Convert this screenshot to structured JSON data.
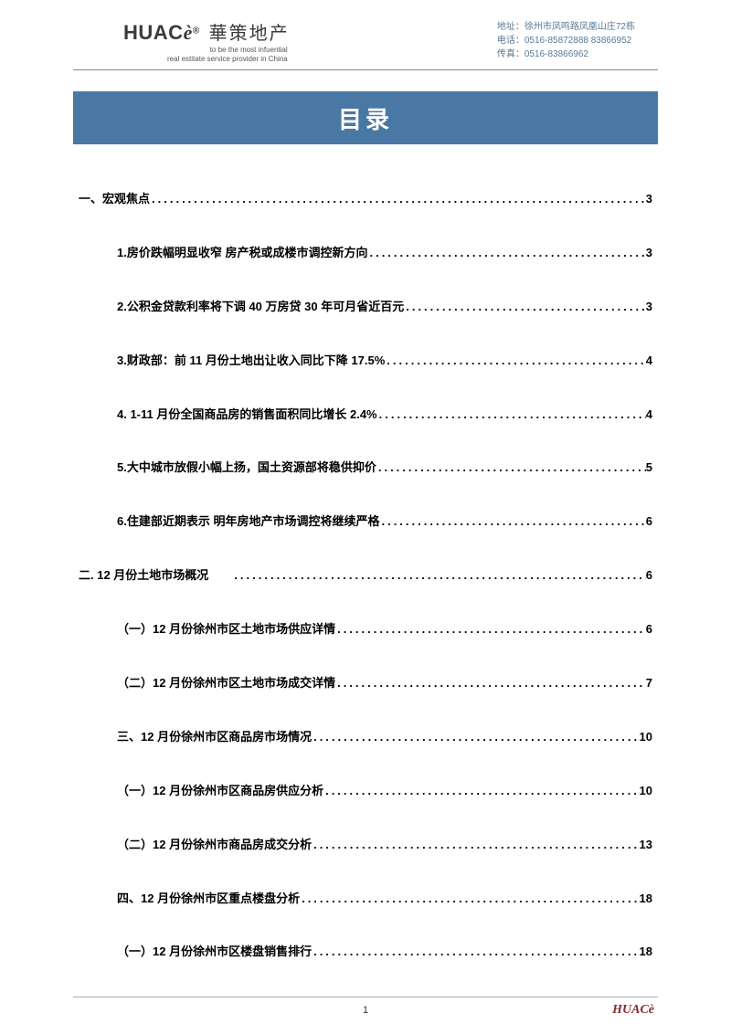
{
  "header": {
    "logo_latin": "HUAC",
    "logo_accent": "è",
    "logo_sup": "®",
    "logo_chinese": "華策地产",
    "logo_sub1": "to be the most infuential",
    "logo_sub2": "real estitate service provider in China",
    "contact_addr": "地址：徐州市凤鸣路凤凰山庄72栋",
    "contact_tel": "电话：0516-85872888  83866952",
    "contact_fax": "传真：0516-83866962"
  },
  "title": "目录",
  "toc": [
    {
      "level": 1,
      "label": "一、宏观焦点",
      "page": "3"
    },
    {
      "level": 2,
      "label": "1.房价跌幅明显收窄  房产税或成楼市调控新方向",
      "page": "3"
    },
    {
      "level": 2,
      "label": "2.公积金贷款利率将下调  40 万房贷 30 年可月省近百元 ",
      "page": "3"
    },
    {
      "level": 2,
      "label": "3.财政部：前 11 月份土地出让收入同比下降 17.5% ",
      "page": "4"
    },
    {
      "level": 2,
      "label": "4. 1-11 月份全国商品房的销售面积同比增长 2.4% ",
      "page": "4"
    },
    {
      "level": 2,
      "label": "5.大中城市放假小幅上扬，国土资源部将稳供抑价",
      "page": "5"
    },
    {
      "level": 2,
      "label": "6.住建部近期表示  明年房地产市场调控将继续严格 ",
      "page": "6"
    },
    {
      "level": 1,
      "label": "二. 12 月份土地市场概况  ",
      "page": "6"
    },
    {
      "level": 2,
      "label": "（一）12 月份徐州市区土地市场供应详情",
      "page": "6"
    },
    {
      "level": 2,
      "label": "（二）12 月份徐州市区土地市场成交详情",
      "page": "7"
    },
    {
      "level": 2,
      "label": "三、12 月份徐州市区商品房市场情况",
      "page": "10"
    },
    {
      "level": 2,
      "label": "（一）12 月份徐州市区商品房供应分析 ",
      "page": "10"
    },
    {
      "level": 2,
      "label": "（二）12 月份徐州市商品房成交分析",
      "page": "13"
    },
    {
      "level": 2,
      "label": "四、12 月份徐州市区重点楼盘分析 ",
      "page": "18"
    },
    {
      "level": 2,
      "label": "（一）12 月份徐州市区楼盘销售排行",
      "page": "18"
    }
  ],
  "footer": {
    "page_number": "1",
    "logo": "HUACè"
  },
  "colors": {
    "title_bar_bg": "#4a78a4",
    "title_text": "#ffffff",
    "text": "#000000",
    "contact_text": "#5a7a95",
    "footer_logo": "#872b2a",
    "header_rule": "#888888",
    "footer_rule": "#aaaaaa"
  }
}
